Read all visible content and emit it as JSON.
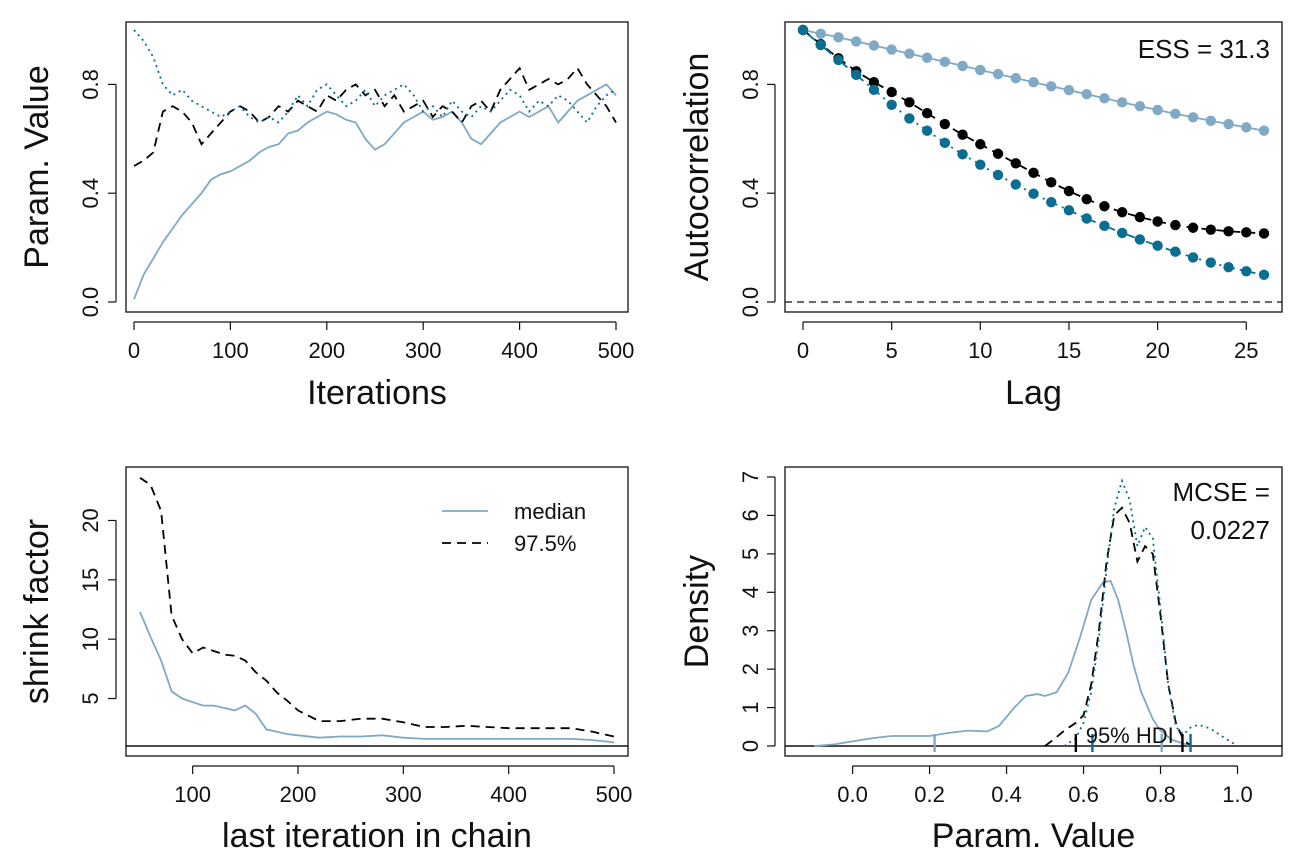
{
  "colors": {
    "c1": "#7fa9c4",
    "c2": "#000000",
    "c3": "#0a6e91",
    "axis": "#111111"
  },
  "chart_data": [
    {
      "id": "trace",
      "type": "line",
      "title": "",
      "xlabel": "Iterations",
      "ylabel": "Param. Value",
      "xlim": [
        0,
        500
      ],
      "ylim": [
        0,
        1
      ],
      "x_ticks": [
        0,
        100,
        200,
        300,
        400,
        500
      ],
      "x_tick_labels": [
        "0",
        "100",
        "200",
        "300",
        "400",
        "500"
      ],
      "y_ticks": [
        0,
        0.4,
        0.8
      ],
      "y_tick_labels": [
        "0.0",
        "0.4",
        "0.8"
      ],
      "grid": false,
      "series": [
        {
          "style": "solid",
          "color": "c1",
          "x": [
            0,
            10,
            20,
            30,
            40,
            50,
            60,
            70,
            80,
            90,
            100,
            110,
            120,
            130,
            140,
            150,
            160,
            170,
            180,
            190,
            200,
            210,
            220,
            230,
            240,
            250,
            260,
            270,
            280,
            290,
            300,
            310,
            320,
            330,
            340,
            350,
            360,
            370,
            380,
            390,
            400,
            410,
            420,
            430,
            440,
            450,
            460,
            470,
            480,
            490,
            500
          ],
          "y": [
            0.01,
            0.1,
            0.16,
            0.22,
            0.27,
            0.32,
            0.36,
            0.4,
            0.45,
            0.47,
            0.48,
            0.5,
            0.52,
            0.55,
            0.57,
            0.58,
            0.62,
            0.63,
            0.66,
            0.68,
            0.7,
            0.69,
            0.67,
            0.66,
            0.6,
            0.56,
            0.58,
            0.62,
            0.66,
            0.68,
            0.7,
            0.67,
            0.68,
            0.7,
            0.66,
            0.6,
            0.58,
            0.62,
            0.66,
            0.68,
            0.7,
            0.68,
            0.7,
            0.72,
            0.66,
            0.7,
            0.74,
            0.76,
            0.78,
            0.8,
            0.76
          ]
        },
        {
          "style": "dashed",
          "color": "c2",
          "x": [
            0,
            10,
            20,
            30,
            40,
            50,
            60,
            70,
            80,
            90,
            100,
            110,
            120,
            130,
            140,
            150,
            160,
            170,
            180,
            190,
            200,
            210,
            220,
            230,
            240,
            250,
            260,
            270,
            280,
            290,
            300,
            310,
            320,
            330,
            340,
            350,
            360,
            370,
            380,
            390,
            400,
            410,
            420,
            430,
            440,
            450,
            460,
            470,
            480,
            490,
            500
          ],
          "y": [
            0.5,
            0.52,
            0.55,
            0.7,
            0.72,
            0.7,
            0.66,
            0.58,
            0.62,
            0.66,
            0.7,
            0.72,
            0.7,
            0.66,
            0.68,
            0.72,
            0.7,
            0.74,
            0.72,
            0.7,
            0.76,
            0.74,
            0.78,
            0.8,
            0.76,
            0.78,
            0.72,
            0.76,
            0.7,
            0.72,
            0.74,
            0.68,
            0.72,
            0.7,
            0.66,
            0.72,
            0.74,
            0.7,
            0.78,
            0.82,
            0.86,
            0.78,
            0.8,
            0.82,
            0.8,
            0.82,
            0.86,
            0.8,
            0.76,
            0.72,
            0.66
          ]
        },
        {
          "style": "dotted",
          "color": "c3",
          "x": [
            0,
            10,
            20,
            30,
            40,
            50,
            60,
            70,
            80,
            90,
            100,
            110,
            120,
            130,
            140,
            150,
            160,
            170,
            180,
            190,
            200,
            210,
            220,
            230,
            240,
            250,
            260,
            270,
            280,
            290,
            300,
            310,
            320,
            330,
            340,
            350,
            360,
            370,
            380,
            390,
            400,
            410,
            420,
            430,
            440,
            450,
            460,
            470,
            480,
            490,
            500
          ],
          "y": [
            1.0,
            0.96,
            0.9,
            0.8,
            0.76,
            0.78,
            0.74,
            0.72,
            0.7,
            0.68,
            0.7,
            0.72,
            0.68,
            0.66,
            0.68,
            0.66,
            0.7,
            0.76,
            0.72,
            0.78,
            0.8,
            0.76,
            0.72,
            0.74,
            0.78,
            0.72,
            0.76,
            0.78,
            0.8,
            0.76,
            0.7,
            0.72,
            0.68,
            0.74,
            0.7,
            0.68,
            0.72,
            0.7,
            0.74,
            0.78,
            0.76,
            0.7,
            0.74,
            0.72,
            0.76,
            0.74,
            0.7,
            0.66,
            0.72,
            0.76,
            0.78
          ]
        }
      ]
    },
    {
      "id": "acf",
      "type": "line",
      "title": "",
      "xlabel": "Lag",
      "ylabel": "Autocorrelation",
      "xlim": [
        0,
        26
      ],
      "ylim": [
        0,
        1
      ],
      "x_ticks": [
        0,
        5,
        10,
        15,
        20,
        25
      ],
      "x_tick_labels": [
        "0",
        "5",
        "10",
        "15",
        "20",
        "25"
      ],
      "y_ticks": [
        0,
        0.4,
        0.8
      ],
      "y_tick_labels": [
        "0.0",
        "0.4",
        "0.8"
      ],
      "annotation": "ESS = 31.3",
      "zero_line": 0,
      "grid": false,
      "series": [
        {
          "style": "solid",
          "color": "c1",
          "markers": true,
          "x": [
            0,
            1,
            2,
            3,
            4,
            5,
            6,
            7,
            8,
            9,
            10,
            11,
            12,
            13,
            14,
            15,
            16,
            17,
            18,
            19,
            20,
            21,
            22,
            23,
            24,
            25,
            26
          ],
          "y": [
            1.0,
            0.986,
            0.973,
            0.958,
            0.943,
            0.928,
            0.913,
            0.898,
            0.883,
            0.868,
            0.853,
            0.838,
            0.823,
            0.808,
            0.793,
            0.779,
            0.764,
            0.749,
            0.734,
            0.72,
            0.706,
            0.692,
            0.679,
            0.666,
            0.654,
            0.642,
            0.63
          ]
        },
        {
          "style": "dashed",
          "color": "c2",
          "markers": true,
          "x": [
            0,
            1,
            2,
            3,
            4,
            5,
            6,
            7,
            8,
            9,
            10,
            11,
            12,
            13,
            14,
            15,
            16,
            17,
            18,
            19,
            20,
            21,
            22,
            23,
            24,
            25,
            26
          ],
          "y": [
            1.0,
            0.948,
            0.896,
            0.848,
            0.808,
            0.772,
            0.734,
            0.694,
            0.654,
            0.615,
            0.58,
            0.545,
            0.51,
            0.475,
            0.44,
            0.408,
            0.378,
            0.352,
            0.33,
            0.312,
            0.296,
            0.283,
            0.273,
            0.266,
            0.26,
            0.256,
            0.252
          ]
        },
        {
          "style": "dotdash",
          "color": "c3",
          "markers": true,
          "x": [
            0,
            1,
            2,
            3,
            4,
            5,
            6,
            7,
            8,
            9,
            10,
            11,
            12,
            13,
            14,
            15,
            16,
            17,
            18,
            19,
            20,
            21,
            22,
            23,
            24,
            25,
            26
          ],
          "y": [
            1.0,
            0.945,
            0.89,
            0.835,
            0.78,
            0.725,
            0.675,
            0.63,
            0.585,
            0.543,
            0.505,
            0.467,
            0.432,
            0.398,
            0.367,
            0.337,
            0.307,
            0.28,
            0.254,
            0.23,
            0.207,
            0.185,
            0.164,
            0.145,
            0.128,
            0.113,
            0.1
          ]
        }
      ]
    },
    {
      "id": "shrink",
      "type": "line",
      "title": "",
      "xlabel": "last iteration in chain",
      "ylabel": "shrink factor",
      "xlim": [
        50,
        500
      ],
      "ylim": [
        1,
        24
      ],
      "x_ticks": [
        100,
        200,
        300,
        400,
        500
      ],
      "x_tick_labels": [
        "100",
        "200",
        "300",
        "400",
        "500"
      ],
      "y_ticks": [
        5,
        10,
        15,
        20
      ],
      "y_tick_labels": [
        "5",
        "10",
        "15",
        "20"
      ],
      "ref_line": 1,
      "legend_position": "top-right",
      "legend": [
        {
          "label": "median",
          "style": "solid",
          "color": "c1"
        },
        {
          "label": "97.5%",
          "style": "dashed",
          "color": "c2"
        }
      ],
      "grid": false,
      "series": [
        {
          "name": "median",
          "style": "solid",
          "color": "c1",
          "x": [
            50,
            60,
            70,
            80,
            90,
            100,
            110,
            120,
            130,
            140,
            150,
            160,
            170,
            180,
            190,
            200,
            220,
            240,
            260,
            280,
            300,
            320,
            340,
            360,
            380,
            400,
            420,
            440,
            460,
            480,
            500
          ],
          "y": [
            12.3,
            10.2,
            8.2,
            5.6,
            5.0,
            4.7,
            4.4,
            4.4,
            4.2,
            4.0,
            4.4,
            3.7,
            2.4,
            2.2,
            2.0,
            1.9,
            1.7,
            1.8,
            1.8,
            1.9,
            1.7,
            1.6,
            1.6,
            1.6,
            1.6,
            1.6,
            1.6,
            1.6,
            1.6,
            1.5,
            1.3
          ]
        },
        {
          "name": "97.5%",
          "style": "dashed",
          "color": "c2",
          "x": [
            50,
            60,
            70,
            80,
            90,
            100,
            110,
            120,
            130,
            140,
            150,
            160,
            170,
            180,
            190,
            200,
            220,
            240,
            260,
            280,
            300,
            320,
            340,
            360,
            380,
            400,
            420,
            440,
            460,
            480,
            500
          ],
          "y": [
            23.6,
            23.0,
            20.8,
            12.0,
            10.0,
            8.8,
            9.3,
            9.0,
            8.7,
            8.6,
            8.2,
            7.2,
            6.5,
            5.5,
            4.8,
            4.0,
            3.1,
            3.1,
            3.3,
            3.3,
            3.0,
            2.6,
            2.6,
            2.7,
            2.6,
            2.5,
            2.5,
            2.5,
            2.5,
            2.2,
            1.8
          ]
        }
      ]
    },
    {
      "id": "density",
      "type": "line",
      "title": "",
      "xlabel": "Param. Value",
      "ylabel": "Density",
      "xlim": [
        -0.16,
        1.1
      ],
      "ylim": [
        0,
        7
      ],
      "x_ticks": [
        0.0,
        0.2,
        0.4,
        0.6,
        0.8,
        1.0
      ],
      "x_tick_labels": [
        "0.0",
        "0.2",
        "0.4",
        "0.6",
        "0.8",
        "1.0"
      ],
      "y_ticks": [
        0,
        1,
        2,
        3,
        4,
        5,
        6,
        7
      ],
      "y_tick_labels": [
        "0",
        "1",
        "2",
        "3",
        "4",
        "5",
        "6",
        "7"
      ],
      "annotation_lines": [
        "MCSE =",
        "0.0227"
      ],
      "hdi_label": "95% HDI",
      "grid": false,
      "hdi_ticks": [
        {
          "x": 0.213,
          "color": "c1"
        },
        {
          "x": 0.803,
          "color": "c1"
        },
        {
          "x": 0.58,
          "color": "c2"
        },
        {
          "x": 0.857,
          "color": "c2"
        },
        {
          "x": 0.623,
          "color": "c3"
        },
        {
          "x": 0.878,
          "color": "c3"
        }
      ],
      "series": [
        {
          "style": "solid",
          "color": "c1",
          "x": [
            -0.1,
            -0.05,
            0.0,
            0.05,
            0.1,
            0.15,
            0.2,
            0.25,
            0.3,
            0.35,
            0.38,
            0.42,
            0.45,
            0.48,
            0.5,
            0.53,
            0.56,
            0.59,
            0.62,
            0.65,
            0.67,
            0.69,
            0.71,
            0.73,
            0.75,
            0.78,
            0.8,
            0.83,
            0.86,
            0.88
          ],
          "y": [
            0,
            0.04,
            0.12,
            0.2,
            0.26,
            0.26,
            0.26,
            0.34,
            0.4,
            0.38,
            0.52,
            1.0,
            1.3,
            1.35,
            1.3,
            1.4,
            1.9,
            2.8,
            3.8,
            4.25,
            4.3,
            3.8,
            3.0,
            2.1,
            1.4,
            0.7,
            0.4,
            0.16,
            0.06,
            0
          ]
        },
        {
          "style": "dashed",
          "color": "c2",
          "x": [
            0.5,
            0.52,
            0.55,
            0.58,
            0.6,
            0.62,
            0.64,
            0.66,
            0.68,
            0.7,
            0.72,
            0.74,
            0.76,
            0.78,
            0.8,
            0.82,
            0.84,
            0.86,
            0.88
          ],
          "y": [
            0,
            0.15,
            0.4,
            0.6,
            0.8,
            1.6,
            3.0,
            4.8,
            6.0,
            6.2,
            5.8,
            4.8,
            5.2,
            5.0,
            3.4,
            1.6,
            0.6,
            0.15,
            0
          ]
        },
        {
          "style": "dotted",
          "color": "c3",
          "x": [
            0.55,
            0.58,
            0.6,
            0.62,
            0.64,
            0.66,
            0.68,
            0.7,
            0.72,
            0.74,
            0.76,
            0.78,
            0.8,
            0.82,
            0.84,
            0.86,
            0.88,
            0.9,
            0.93,
            0.96,
            1.0
          ],
          "y": [
            0,
            0.2,
            0.6,
            1.4,
            2.8,
            4.6,
            6.2,
            6.9,
            6.4,
            5.2,
            5.7,
            5.4,
            3.6,
            1.6,
            0.5,
            0.3,
            0.5,
            0.55,
            0.45,
            0.25,
            0
          ]
        }
      ]
    }
  ]
}
